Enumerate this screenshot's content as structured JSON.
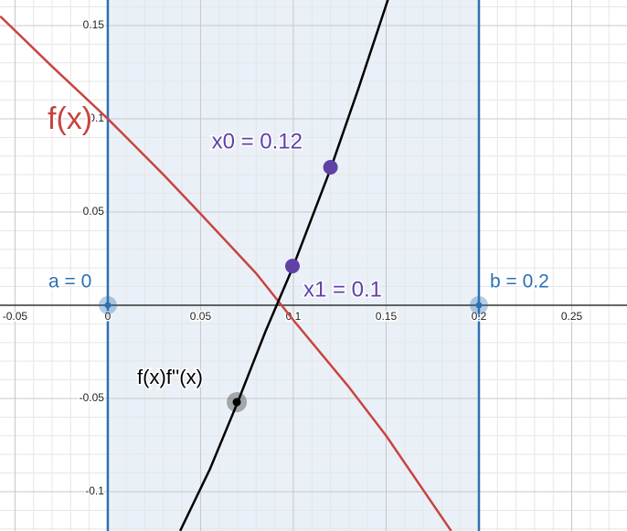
{
  "chart_data": {
    "type": "line",
    "xlim": [
      -0.0581,
      0.2798
    ],
    "ylim": [
      -0.1211,
      0.1637
    ],
    "xticks": [
      -0.05,
      0,
      0.05,
      0.1,
      0.15,
      0.2,
      0.25
    ],
    "yticks": [
      -0.1,
      -0.05,
      0.05,
      0.1,
      0.15
    ],
    "grid": true,
    "shaded_interval": {
      "x": [
        0,
        0.2
      ],
      "color": "#2d70b3"
    },
    "series": [
      {
        "name": "f(x)",
        "color": "#c74440",
        "x": [
          -0.058,
          -0.03,
          0,
          0.03,
          0.05,
          0.08,
          0.1,
          0.13,
          0.15,
          0.185
        ],
        "values": [
          0.155,
          0.128,
          0.1,
          0.07,
          0.049,
          0.017,
          -0.008,
          -0.044,
          -0.07,
          -0.121
        ]
      },
      {
        "name": "f(x)f''(x)",
        "color": "#000000",
        "x": [
          0.039,
          0.055,
          0.07,
          0.085,
          0.1,
          0.12,
          0.135,
          0.151
        ],
        "values": [
          -0.121,
          -0.088,
          -0.052,
          -0.014,
          0.021,
          0.073,
          0.116,
          0.164
        ]
      }
    ],
    "points": [
      {
        "label": "x0 = 0.12",
        "x": 0.12,
        "y": 0.074,
        "color": "#6042a6"
      },
      {
        "label": "x1 = 0.1",
        "x": 0.0995,
        "y": 0.021,
        "color": "#6042a6"
      },
      {
        "label": "a = 0",
        "x": 0,
        "y": 0,
        "color": "#2d70b3"
      },
      {
        "label": "b = 0.2",
        "x": 0.2,
        "y": 0,
        "color": "#2d70b3"
      }
    ],
    "series_point": {
      "x": 0.0695,
      "y": -0.052,
      "color": "#000000"
    }
  }
}
